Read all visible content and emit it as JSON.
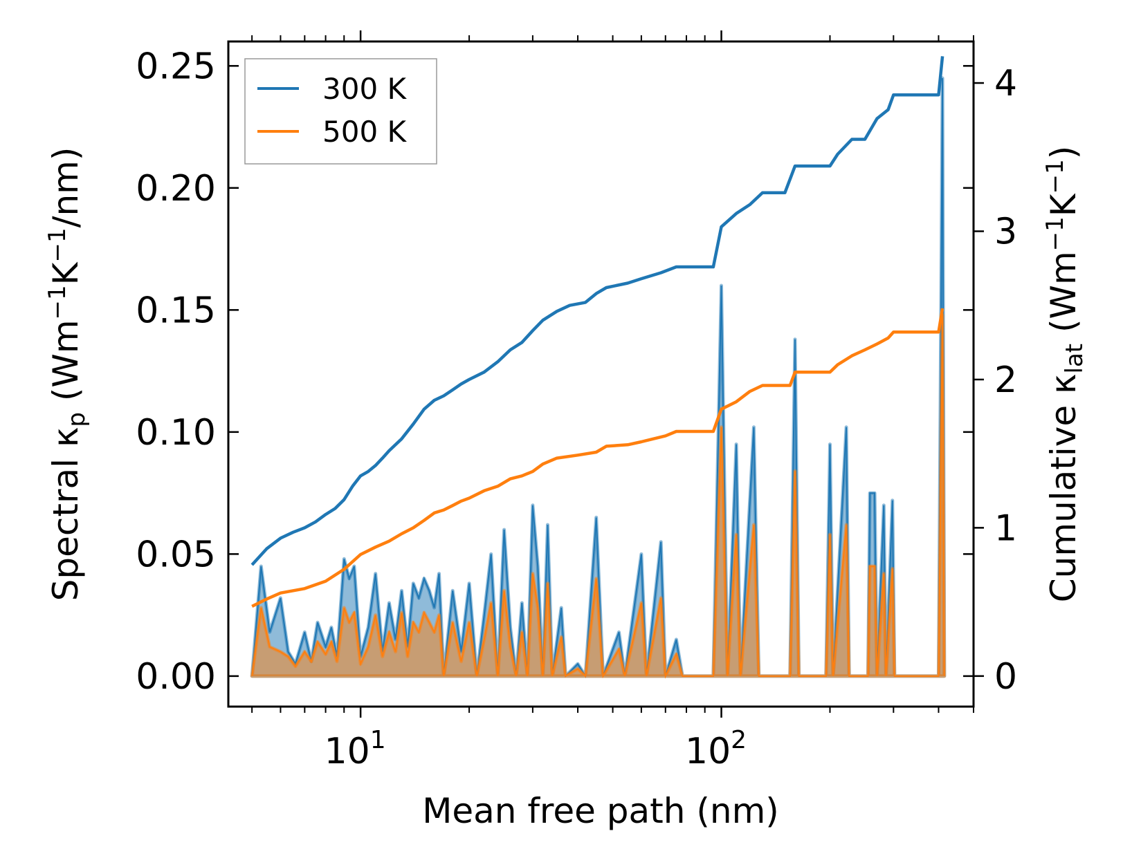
{
  "chart_data": {
    "type": "line",
    "xlabel": "Mean free path (nm)",
    "ylabel_left": "Spectral κ",
    "ylabel_left_sub": "p",
    "ylabel_left_unit": "(Wm−1K−1/nm)",
    "ylabel_right": "Cumulative κ",
    "ylabel_right_sub": "lat",
    "ylabel_right_unit": "(Wm−1K−1)",
    "xscale": "log",
    "xlim": [
      4.3,
      500
    ],
    "ylim_left": [
      -0.0125,
      0.26
    ],
    "ylim_right": [
      -0.206,
      4.28
    ],
    "x_ticks": [
      {
        "value": 10,
        "label": "10",
        "exp": "1"
      },
      {
        "value": 100,
        "label": "10",
        "exp": "2"
      }
    ],
    "y_left_ticks": [
      {
        "value": 0.0,
        "label": "0.00"
      },
      {
        "value": 0.05,
        "label": "0.05"
      },
      {
        "value": 0.1,
        "label": "0.10"
      },
      {
        "value": 0.15,
        "label": "0.15"
      },
      {
        "value": 0.2,
        "label": "0.20"
      },
      {
        "value": 0.25,
        "label": "0.25"
      }
    ],
    "y_right_ticks": [
      {
        "value": 0,
        "label": "0"
      },
      {
        "value": 1,
        "label": "1"
      },
      {
        "value": 2,
        "label": "2"
      },
      {
        "value": 3,
        "label": "3"
      },
      {
        "value": 4,
        "label": "4"
      }
    ],
    "legend": {
      "position": "upper-left",
      "entries": [
        "300 K",
        "500 K"
      ]
    },
    "series": [
      {
        "name": "300 K",
        "color": "#1f77b4",
        "cumulative": [
          [
            5.0,
            0.75
          ],
          [
            5.5,
            0.86
          ],
          [
            6.0,
            0.93
          ],
          [
            6.5,
            0.97
          ],
          [
            7.0,
            1.0
          ],
          [
            7.5,
            1.04
          ],
          [
            8.0,
            1.09
          ],
          [
            8.5,
            1.13
          ],
          [
            9.0,
            1.19
          ],
          [
            9.5,
            1.28
          ],
          [
            10.0,
            1.35
          ],
          [
            10.5,
            1.38
          ],
          [
            11.0,
            1.42
          ],
          [
            11.5,
            1.47
          ],
          [
            12.0,
            1.52
          ],
          [
            13.0,
            1.6
          ],
          [
            14.0,
            1.7
          ],
          [
            15.0,
            1.8
          ],
          [
            16.0,
            1.86
          ],
          [
            17.0,
            1.89
          ],
          [
            18.0,
            1.93
          ],
          [
            19.0,
            1.97
          ],
          [
            20.0,
            2.0
          ],
          [
            22.0,
            2.05
          ],
          [
            24.0,
            2.12
          ],
          [
            26.0,
            2.2
          ],
          [
            28.0,
            2.25
          ],
          [
            30.0,
            2.33
          ],
          [
            32.0,
            2.4
          ],
          [
            35.0,
            2.46
          ],
          [
            38.0,
            2.5
          ],
          [
            42.0,
            2.52
          ],
          [
            45.0,
            2.58
          ],
          [
            48.0,
            2.62
          ],
          [
            55.0,
            2.65
          ],
          [
            60.0,
            2.68
          ],
          [
            68.0,
            2.72
          ],
          [
            75.0,
            2.76
          ],
          [
            95.0,
            2.76
          ],
          [
            100.0,
            3.03
          ],
          [
            110.0,
            3.12
          ],
          [
            120.0,
            3.18
          ],
          [
            130.0,
            3.26
          ],
          [
            150.0,
            3.26
          ],
          [
            160.0,
            3.44
          ],
          [
            200.0,
            3.44
          ],
          [
            210.0,
            3.52
          ],
          [
            230.0,
            3.62
          ],
          [
            250.0,
            3.62
          ],
          [
            270.0,
            3.76
          ],
          [
            290.0,
            3.82
          ],
          [
            300.0,
            3.92
          ],
          [
            400.0,
            3.92
          ],
          [
            410.0,
            4.18
          ]
        ],
        "spectral": [
          [
            5.0,
            0.0
          ],
          [
            5.3,
            0.045
          ],
          [
            5.6,
            0.018
          ],
          [
            6.0,
            0.032
          ],
          [
            6.3,
            0.01
          ],
          [
            6.6,
            0.005
          ],
          [
            7.0,
            0.018
          ],
          [
            7.3,
            0.006
          ],
          [
            7.6,
            0.022
          ],
          [
            8.0,
            0.012
          ],
          [
            8.3,
            0.02
          ],
          [
            8.6,
            0.008
          ],
          [
            9.0,
            0.048
          ],
          [
            9.3,
            0.04
          ],
          [
            9.6,
            0.045
          ],
          [
            10.0,
            0.008
          ],
          [
            10.5,
            0.02
          ],
          [
            11.0,
            0.042
          ],
          [
            11.5,
            0.01
          ],
          [
            12.0,
            0.03
          ],
          [
            12.5,
            0.015
          ],
          [
            13.0,
            0.035
          ],
          [
            13.5,
            0.012
          ],
          [
            14.0,
            0.038
          ],
          [
            14.5,
            0.032
          ],
          [
            15.0,
            0.04
          ],
          [
            15.5,
            0.035
          ],
          [
            16.0,
            0.028
          ],
          [
            16.5,
            0.042
          ],
          [
            17.0,
            0.0
          ],
          [
            18.0,
            0.035
          ],
          [
            19.0,
            0.01
          ],
          [
            20.0,
            0.038
          ],
          [
            21.0,
            0.0
          ],
          [
            22.0,
            0.025
          ],
          [
            23.0,
            0.05
          ],
          [
            24.0,
            0.0
          ],
          [
            25.0,
            0.06
          ],
          [
            26.0,
            0.02
          ],
          [
            27.0,
            0.0
          ],
          [
            28.0,
            0.03
          ],
          [
            29.0,
            0.0
          ],
          [
            30.0,
            0.07
          ],
          [
            31.0,
            0.045
          ],
          [
            32.0,
            0.0
          ],
          [
            33.0,
            0.062
          ],
          [
            34.0,
            0.0
          ],
          [
            36.0,
            0.028
          ],
          [
            37.0,
            0.0
          ],
          [
            40.0,
            0.005
          ],
          [
            42.0,
            0.0
          ],
          [
            45.0,
            0.065
          ],
          [
            47.0,
            0.0
          ],
          [
            52.0,
            0.018
          ],
          [
            54.0,
            0.0
          ],
          [
            60.0,
            0.05
          ],
          [
            62.0,
            0.0
          ],
          [
            68.0,
            0.055
          ],
          [
            70.0,
            0.0
          ],
          [
            75.0,
            0.015
          ],
          [
            78.0,
            0.0
          ],
          [
            95.0,
            0.0
          ],
          [
            100.0,
            0.16
          ],
          [
            104.0,
            0.0
          ],
          [
            110.0,
            0.095
          ],
          [
            113.0,
            0.0
          ],
          [
            123.0,
            0.102
          ],
          [
            127.0,
            0.0
          ],
          [
            155.0,
            0.0
          ],
          [
            160.0,
            0.138
          ],
          [
            164.0,
            0.0
          ],
          [
            195.0,
            0.0
          ],
          [
            200.0,
            0.095
          ],
          [
            204.0,
            0.0
          ],
          [
            222.0,
            0.102
          ],
          [
            226.0,
            0.0
          ],
          [
            255.0,
            0.0
          ],
          [
            258.0,
            0.075
          ],
          [
            266.0,
            0.075
          ],
          [
            270.0,
            0.0
          ],
          [
            282.0,
            0.07
          ],
          [
            286.0,
            0.0
          ],
          [
            298.0,
            0.072
          ],
          [
            302.0,
            0.0
          ],
          [
            400.0,
            0.0
          ],
          [
            410.0,
            0.245
          ],
          [
            415.0,
            0.0
          ]
        ]
      },
      {
        "name": "500 K",
        "color": "#ff7f0e",
        "cumulative": [
          [
            5.0,
            0.47
          ],
          [
            5.5,
            0.52
          ],
          [
            6.0,
            0.56
          ],
          [
            7.0,
            0.59
          ],
          [
            8.0,
            0.64
          ],
          [
            9.0,
            0.72
          ],
          [
            10.0,
            0.82
          ],
          [
            11.0,
            0.87
          ],
          [
            12.0,
            0.91
          ],
          [
            13.0,
            0.96
          ],
          [
            14.0,
            1.0
          ],
          [
            15.0,
            1.05
          ],
          [
            16.0,
            1.1
          ],
          [
            17.0,
            1.12
          ],
          [
            18.0,
            1.15
          ],
          [
            19.0,
            1.18
          ],
          [
            20.0,
            1.2
          ],
          [
            22.0,
            1.25
          ],
          [
            24.0,
            1.28
          ],
          [
            26.0,
            1.33
          ],
          [
            28.0,
            1.35
          ],
          [
            30.0,
            1.38
          ],
          [
            32.0,
            1.43
          ],
          [
            35.0,
            1.47
          ],
          [
            40.0,
            1.49
          ],
          [
            45.0,
            1.51
          ],
          [
            48.0,
            1.55
          ],
          [
            55.0,
            1.56
          ],
          [
            60.0,
            1.58
          ],
          [
            70.0,
            1.62
          ],
          [
            75.0,
            1.65
          ],
          [
            95.0,
            1.65
          ],
          [
            100.0,
            1.8
          ],
          [
            110.0,
            1.85
          ],
          [
            120.0,
            1.92
          ],
          [
            130.0,
            1.96
          ],
          [
            155.0,
            1.96
          ],
          [
            160.0,
            2.05
          ],
          [
            200.0,
            2.05
          ],
          [
            210.0,
            2.1
          ],
          [
            230.0,
            2.16
          ],
          [
            250.0,
            2.2
          ],
          [
            270.0,
            2.24
          ],
          [
            290.0,
            2.28
          ],
          [
            300.0,
            2.32
          ],
          [
            400.0,
            2.32
          ],
          [
            410.0,
            2.48
          ]
        ],
        "spectral": [
          [
            5.0,
            0.0
          ],
          [
            5.3,
            0.028
          ],
          [
            5.6,
            0.012
          ],
          [
            6.0,
            0.01
          ],
          [
            6.3,
            0.008
          ],
          [
            6.6,
            0.004
          ],
          [
            7.0,
            0.01
          ],
          [
            7.3,
            0.006
          ],
          [
            7.6,
            0.014
          ],
          [
            8.0,
            0.009
          ],
          [
            8.3,
            0.014
          ],
          [
            8.6,
            0.006
          ],
          [
            9.0,
            0.028
          ],
          [
            9.3,
            0.022
          ],
          [
            9.6,
            0.026
          ],
          [
            10.0,
            0.005
          ],
          [
            10.5,
            0.012
          ],
          [
            11.0,
            0.025
          ],
          [
            11.5,
            0.008
          ],
          [
            12.0,
            0.018
          ],
          [
            12.5,
            0.01
          ],
          [
            13.0,
            0.026
          ],
          [
            13.5,
            0.008
          ],
          [
            14.0,
            0.022
          ],
          [
            14.5,
            0.018
          ],
          [
            15.0,
            0.026
          ],
          [
            15.5,
            0.022
          ],
          [
            16.0,
            0.018
          ],
          [
            16.5,
            0.025
          ],
          [
            17.0,
            0.0
          ],
          [
            18.0,
            0.022
          ],
          [
            19.0,
            0.006
          ],
          [
            20.0,
            0.022
          ],
          [
            21.0,
            0.0
          ],
          [
            22.0,
            0.015
          ],
          [
            23.0,
            0.03
          ],
          [
            24.0,
            0.0
          ],
          [
            25.0,
            0.035
          ],
          [
            26.0,
            0.012
          ],
          [
            27.0,
            0.0
          ],
          [
            28.0,
            0.018
          ],
          [
            29.0,
            0.0
          ],
          [
            30.0,
            0.042
          ],
          [
            31.0,
            0.028
          ],
          [
            32.0,
            0.0
          ],
          [
            33.0,
            0.038
          ],
          [
            34.0,
            0.0
          ],
          [
            36.0,
            0.016
          ],
          [
            37.0,
            0.0
          ],
          [
            40.0,
            0.003
          ],
          [
            42.0,
            0.0
          ],
          [
            45.0,
            0.04
          ],
          [
            47.0,
            0.0
          ],
          [
            52.0,
            0.011
          ],
          [
            54.0,
            0.0
          ],
          [
            60.0,
            0.03
          ],
          [
            62.0,
            0.0
          ],
          [
            68.0,
            0.032
          ],
          [
            70.0,
            0.0
          ],
          [
            75.0,
            0.009
          ],
          [
            78.0,
            0.0
          ],
          [
            95.0,
            0.0
          ],
          [
            100.0,
            0.102
          ],
          [
            104.0,
            0.0
          ],
          [
            110.0,
            0.058
          ],
          [
            113.0,
            0.0
          ],
          [
            123.0,
            0.062
          ],
          [
            127.0,
            0.0
          ],
          [
            155.0,
            0.0
          ],
          [
            160.0,
            0.084
          ],
          [
            164.0,
            0.0
          ],
          [
            195.0,
            0.0
          ],
          [
            200.0,
            0.058
          ],
          [
            204.0,
            0.0
          ],
          [
            222.0,
            0.062
          ],
          [
            226.0,
            0.0
          ],
          [
            255.0,
            0.0
          ],
          [
            258.0,
            0.045
          ],
          [
            266.0,
            0.045
          ],
          [
            270.0,
            0.0
          ],
          [
            282.0,
            0.042
          ],
          [
            286.0,
            0.0
          ],
          [
            298.0,
            0.044
          ],
          [
            302.0,
            0.0
          ],
          [
            400.0,
            0.0
          ],
          [
            410.0,
            0.148
          ],
          [
            415.0,
            0.0
          ]
        ]
      }
    ]
  }
}
